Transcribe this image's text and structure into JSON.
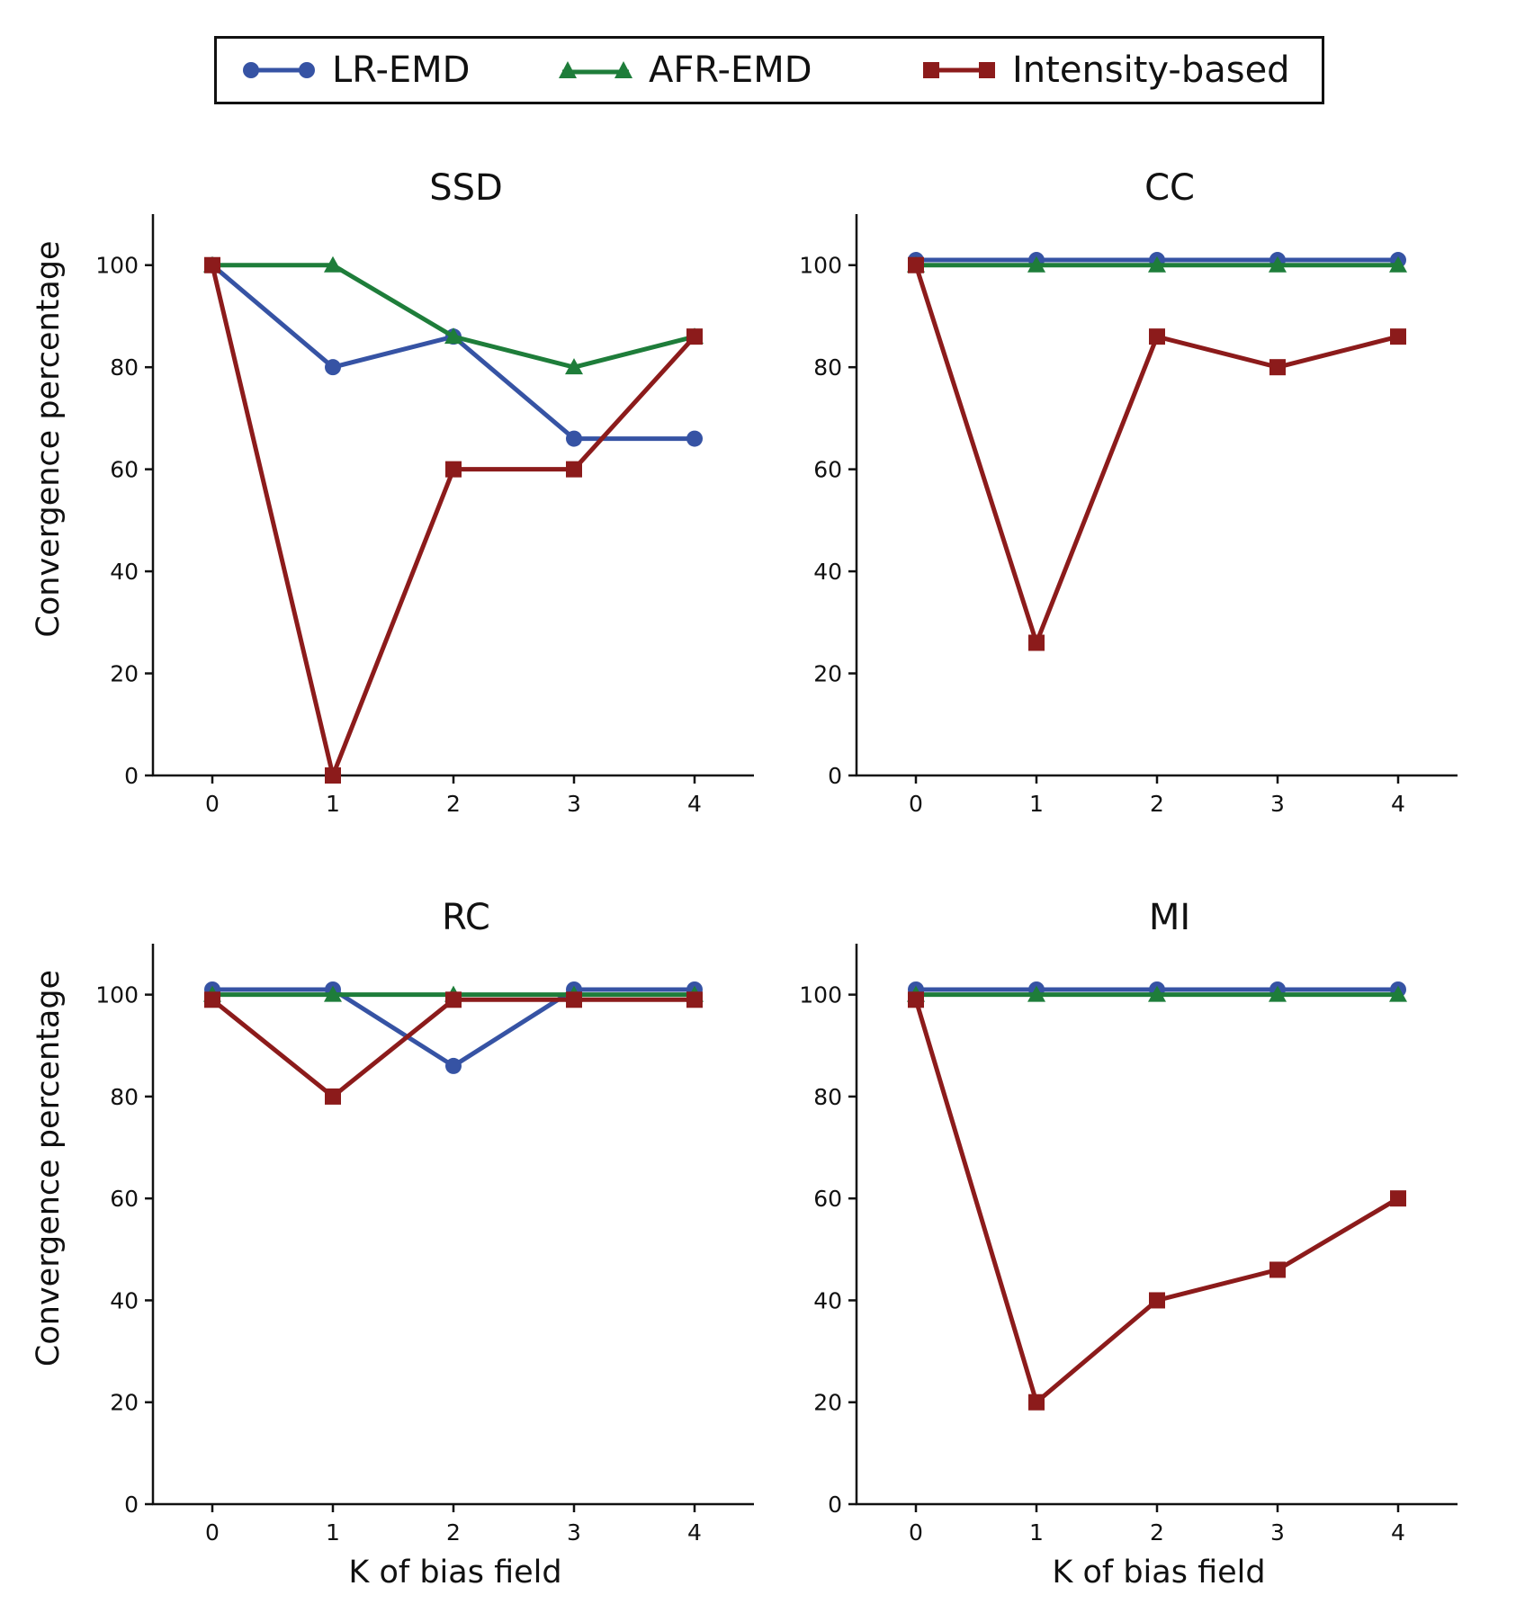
{
  "legend": {
    "entries": [
      {
        "name": "LR-EMD",
        "color": "#3653a4",
        "marker": "circle"
      },
      {
        "name": "AFR-EMD",
        "color": "#1e7d3a",
        "marker": "triangle"
      },
      {
        "name": "Intensity-based",
        "color": "#8c1b1b",
        "marker": "square"
      }
    ]
  },
  "chart_data": [
    {
      "type": "line",
      "title": "SSD",
      "ylabel": "Convergence percentage",
      "xlabel": "",
      "x": [
        0,
        1,
        2,
        3,
        4
      ],
      "ylim": [
        0,
        110
      ],
      "yticks": [
        0,
        20,
        40,
        60,
        80,
        100
      ],
      "grid": false,
      "series": [
        {
          "name": "LR-EMD",
          "values": [
            100,
            80,
            86,
            66,
            66
          ]
        },
        {
          "name": "AFR-EMD",
          "values": [
            100,
            100,
            86,
            80,
            86
          ]
        },
        {
          "name": "Intensity-based",
          "values": [
            100,
            0,
            60,
            60,
            86
          ]
        }
      ]
    },
    {
      "type": "line",
      "title": "CC",
      "ylabel": "",
      "xlabel": "",
      "x": [
        0,
        1,
        2,
        3,
        4
      ],
      "ylim": [
        0,
        110
      ],
      "yticks": [
        0,
        20,
        40,
        60,
        80,
        100
      ],
      "grid": false,
      "series": [
        {
          "name": "LR-EMD",
          "values": [
            101,
            101,
            101,
            101,
            101
          ]
        },
        {
          "name": "AFR-EMD",
          "values": [
            100,
            100,
            100,
            100,
            100
          ]
        },
        {
          "name": "Intensity-based",
          "values": [
            100,
            26,
            86,
            80,
            86
          ]
        }
      ]
    },
    {
      "type": "line",
      "title": "RC",
      "ylabel": "Convergence percentage",
      "xlabel": "K of bias field",
      "x": [
        0,
        1,
        2,
        3,
        4
      ],
      "ylim": [
        0,
        110
      ],
      "yticks": [
        0,
        20,
        40,
        60,
        80,
        100
      ],
      "grid": false,
      "series": [
        {
          "name": "LR-EMD",
          "values": [
            101,
            101,
            86,
            101,
            101
          ]
        },
        {
          "name": "AFR-EMD",
          "values": [
            100,
            100,
            100,
            100,
            100
          ]
        },
        {
          "name": "Intensity-based",
          "values": [
            99,
            80,
            99,
            99,
            99
          ]
        }
      ]
    },
    {
      "type": "line",
      "title": "MI",
      "ylabel": "",
      "xlabel": "K of bias field",
      "x": [
        0,
        1,
        2,
        3,
        4
      ],
      "ylim": [
        0,
        110
      ],
      "yticks": [
        0,
        20,
        40,
        60,
        80,
        100
      ],
      "grid": false,
      "series": [
        {
          "name": "LR-EMD",
          "values": [
            101,
            101,
            101,
            101,
            101
          ]
        },
        {
          "name": "AFR-EMD",
          "values": [
            100,
            100,
            100,
            100,
            100
          ]
        },
        {
          "name": "Intensity-based",
          "values": [
            99,
            20,
            40,
            46,
            60
          ]
        }
      ]
    }
  ]
}
